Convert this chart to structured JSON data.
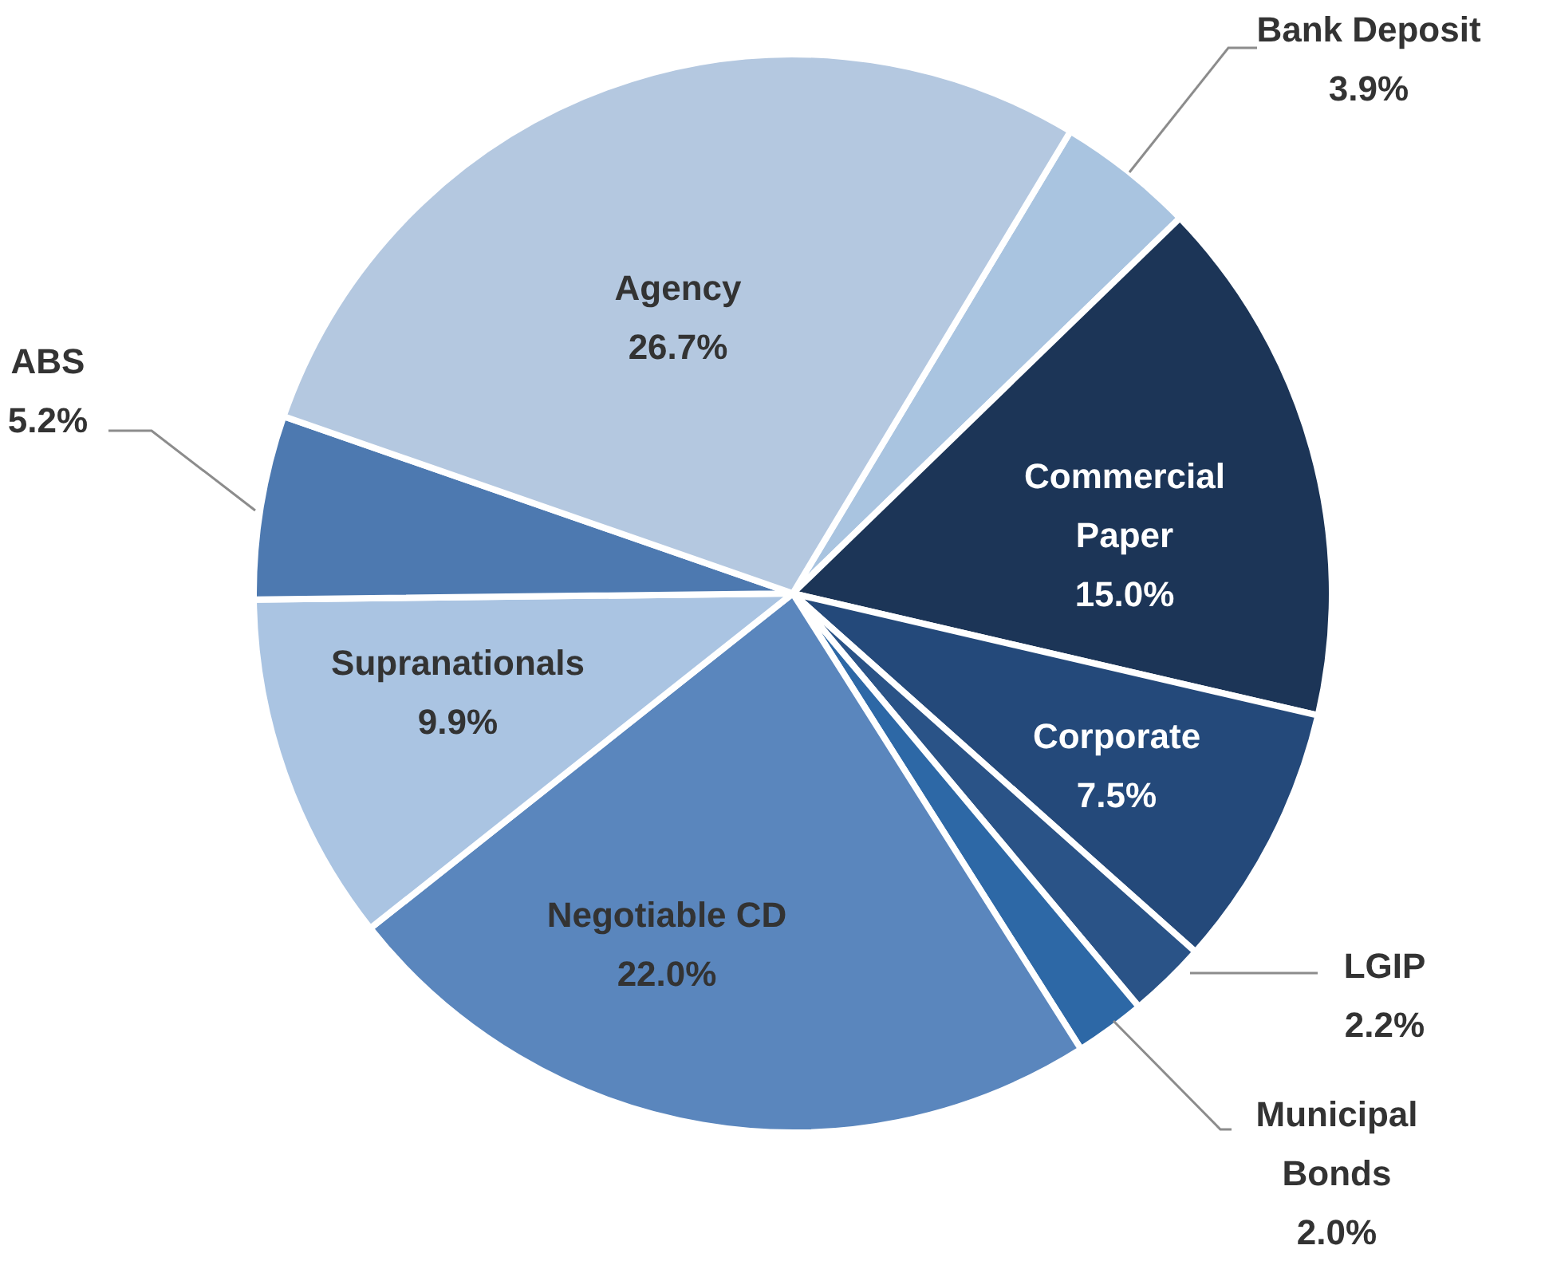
{
  "chart_data": {
    "type": "pie",
    "categories": [
      "Bank Deposit",
      "Commercial Paper",
      "Corporate",
      "LGIP",
      "Municipal Bonds",
      "Negotiable CD",
      "Supranationals",
      "ABS",
      "Agency"
    ],
    "values": [
      3.9,
      15.0,
      7.5,
      2.2,
      2.0,
      22.0,
      9.9,
      5.2,
      26.7
    ],
    "colors": [
      "#a9c4e0",
      "#1c3557",
      "#24497a",
      "#2a5387",
      "#2d68a6",
      "#5a86bd",
      "#aac4e2",
      "#4d79b0",
      "#b4c8e0"
    ],
    "value_labels": [
      "3.9%",
      "15.0%",
      "7.5%",
      "2.2%",
      "2.0%",
      "22.0%",
      "9.9%",
      "5.2%",
      "26.7%"
    ],
    "legend": false
  }
}
